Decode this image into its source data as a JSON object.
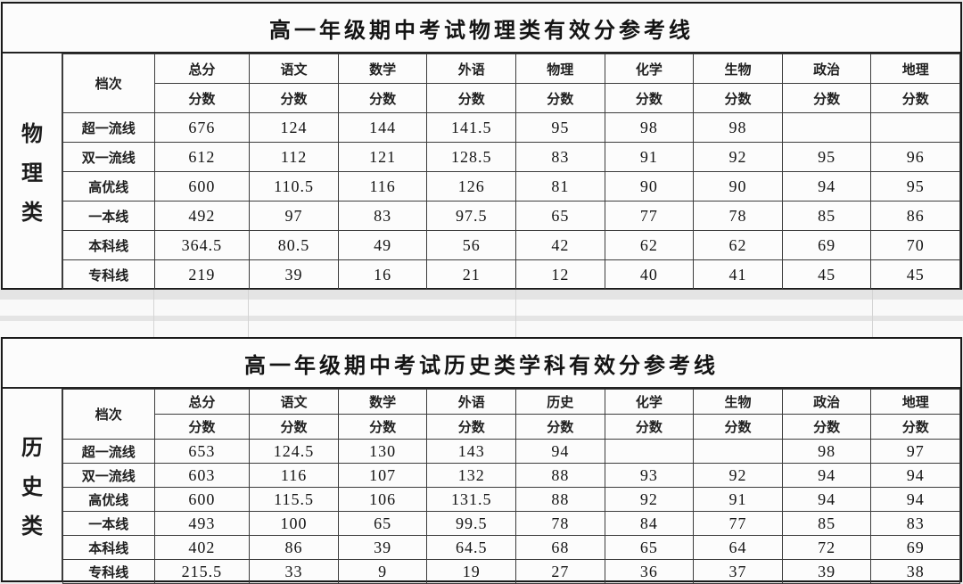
{
  "tables": [
    {
      "category_label": "物理类",
      "title": "高一年级期中考试物理类有效分参考线",
      "tier_header": "档次",
      "score_label": "分数",
      "subject_headers": [
        "总分",
        "语文",
        "数学",
        "外语",
        "物理",
        "化学",
        "生物",
        "政治",
        "地理"
      ],
      "rows": [
        {
          "tier": "超一流线",
          "scores": [
            "676",
            "124",
            "144",
            "141.5",
            "95",
            "98",
            "98",
            "",
            ""
          ]
        },
        {
          "tier": "双一流线",
          "scores": [
            "612",
            "112",
            "121",
            "128.5",
            "83",
            "91",
            "92",
            "95",
            "96"
          ]
        },
        {
          "tier": "高优线",
          "scores": [
            "600",
            "110.5",
            "116",
            "126",
            "81",
            "90",
            "90",
            "94",
            "95"
          ]
        },
        {
          "tier": "一本线",
          "scores": [
            "492",
            "97",
            "83",
            "97.5",
            "65",
            "77",
            "78",
            "85",
            "86"
          ]
        },
        {
          "tier": "本科线",
          "scores": [
            "364.5",
            "80.5",
            "49",
            "56",
            "42",
            "62",
            "62",
            "69",
            "70"
          ]
        },
        {
          "tier": "专科线",
          "scores": [
            "219",
            "39",
            "16",
            "21",
            "12",
            "40",
            "41",
            "45",
            "45"
          ]
        }
      ]
    },
    {
      "category_label": "历史类",
      "title": "高一年级期中考试历史类学科有效分参考线",
      "tier_header": "档次",
      "score_label": "分数",
      "subject_headers": [
        "总分",
        "语文",
        "数学",
        "外语",
        "历史",
        "化学",
        "生物",
        "政治",
        "地理"
      ],
      "rows": [
        {
          "tier": "超一流线",
          "scores": [
            "653",
            "124.5",
            "130",
            "143",
            "94",
            "",
            "",
            "98",
            "97"
          ]
        },
        {
          "tier": "双一流线",
          "scores": [
            "603",
            "116",
            "107",
            "132",
            "88",
            "93",
            "92",
            "94",
            "94"
          ]
        },
        {
          "tier": "高优线",
          "scores": [
            "600",
            "115.5",
            "106",
            "131.5",
            "88",
            "92",
            "91",
            "94",
            "94"
          ]
        },
        {
          "tier": "一本线",
          "scores": [
            "493",
            "100",
            "65",
            "99.5",
            "78",
            "84",
            "77",
            "85",
            "83"
          ]
        },
        {
          "tier": "本科线",
          "scores": [
            "402",
            "86",
            "39",
            "64.5",
            "68",
            "65",
            "64",
            "72",
            "69"
          ]
        },
        {
          "tier": "专科线",
          "scores": [
            "215.5",
            "33",
            "9",
            "19",
            "27",
            "36",
            "37",
            "39",
            "38"
          ]
        }
      ]
    }
  ],
  "colors": {
    "page_background": "#e9e9e9",
    "table_background": "#fcfcfc",
    "border": "#1a1a1a",
    "text": "#1a1a1a"
  }
}
